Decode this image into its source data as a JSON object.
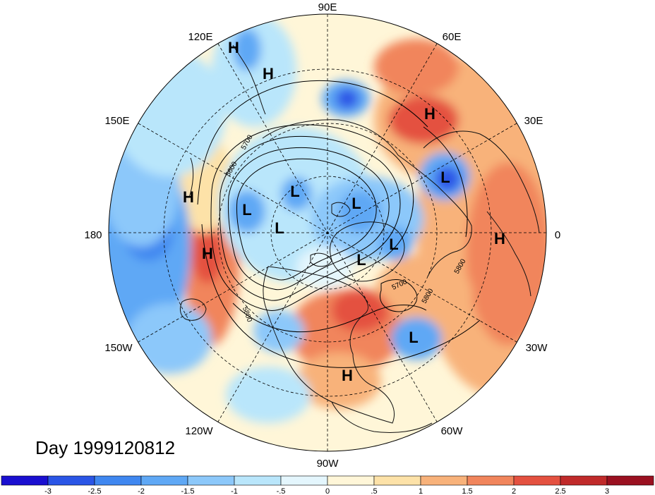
{
  "title": "Day 1999120812",
  "contour_levels": [
    "5600",
    "5700",
    "5800"
  ],
  "contour_label_positions": [
    {
      "text": "5700"
    },
    {
      "text": "5600"
    },
    {
      "text": "5800"
    },
    {
      "text": "5700"
    },
    {
      "text": "5800"
    },
    {
      "text": "5800"
    }
  ],
  "longitude_labels": [
    "90E",
    "60E",
    "30E",
    "0",
    "30W",
    "60W",
    "90W",
    "120W",
    "150W",
    "180",
    "150E",
    "120E"
  ],
  "pressure_centers": [
    {
      "type": "H"
    },
    {
      "type": "H"
    },
    {
      "type": "H"
    },
    {
      "type": "H"
    },
    {
      "type": "H"
    },
    {
      "type": "H"
    },
    {
      "type": "H"
    },
    {
      "type": "L"
    },
    {
      "type": "L"
    },
    {
      "type": "L"
    },
    {
      "type": "L"
    },
    {
      "type": "L"
    },
    {
      "type": "L"
    },
    {
      "type": "L"
    },
    {
      "type": "L"
    }
  ],
  "colorbar": {
    "ticks": [
      "-3",
      "-2.5",
      "-2",
      "-1.5",
      "-1",
      "-.5",
      "0",
      ".5",
      "1",
      "1.5",
      "2",
      "2.5",
      "3"
    ],
    "colors": [
      "#1a0fd0",
      "#2a55e6",
      "#3f87f0",
      "#5fa8f5",
      "#8cc8fa",
      "#b9e6fb",
      "#e4f6fd",
      "#fff6d8",
      "#fde2a8",
      "#f8b27a",
      "#f1855c",
      "#e45140",
      "#c02a2a",
      "#9a1020"
    ]
  },
  "anomaly_colors": {
    "strong_warm": "#e45140",
    "warm": "#f1855c",
    "mild_warm": "#f8b27a",
    "faint_warm": "#fde2a8",
    "neutral_warm": "#fff6d8",
    "neutral_cool": "#e4f6fd",
    "faint_cool": "#b9e6fb",
    "mild_cool": "#8cc8fa",
    "cool": "#5fa8f5",
    "strong_cool": "#3f87f0",
    "deep_cool": "#2a55e6"
  }
}
